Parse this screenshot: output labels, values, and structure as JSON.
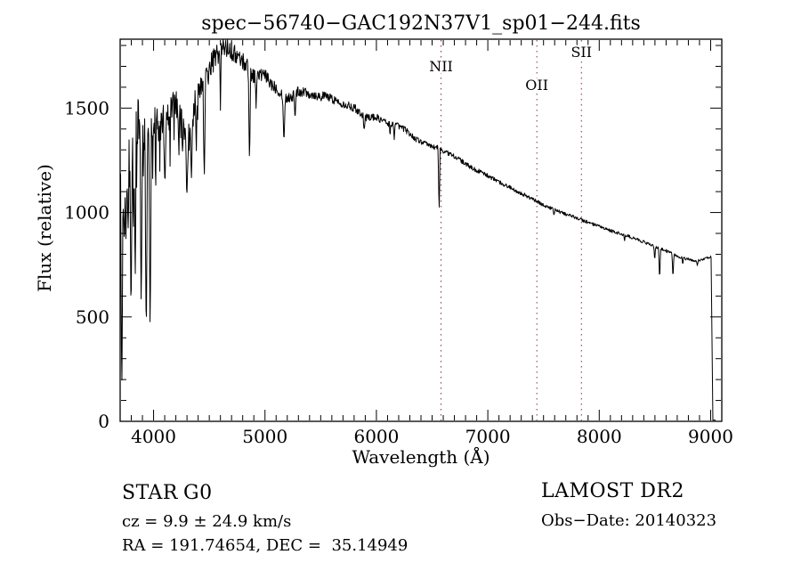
{
  "chart_data": {
    "type": "line",
    "title": "spec−56740−GAC192N37V1_sp01−244.fits",
    "xlabel": "Wavelength (Å)",
    "ylabel": "Flux (relative)",
    "xlim": [
      3700,
      9100
    ],
    "ylim": [
      0,
      1830
    ],
    "xticks": [
      4000,
      5000,
      6000,
      7000,
      8000,
      9000
    ],
    "yticks": [
      0,
      500,
      1000,
      1500
    ],
    "x_minor_step": 100,
    "y_minor_step": 100,
    "grid": false,
    "legend": "none",
    "line_color": "#000000",
    "frame_color": "#000000",
    "marked_line_color": "#8B2E2E",
    "marked_lines": [
      {
        "label": "NII",
        "wavelength": 6580,
        "label_baseline_y": 80
      },
      {
        "label": "OII",
        "wavelength": 7440,
        "label_baseline_y": 101
      },
      {
        "label": "SII",
        "wavelength": 7840,
        "label_baseline_y": 64
      }
    ],
    "spectrum": {
      "sample_step_angstrom": 4,
      "continuum_points": [
        [
          3700,
          1060
        ],
        [
          3720,
          1080
        ],
        [
          3750,
          1090
        ],
        [
          3780,
          1240
        ],
        [
          3820,
          1280
        ],
        [
          3860,
          1430
        ],
        [
          3900,
          1380
        ],
        [
          3950,
          1400
        ],
        [
          4000,
          1400
        ],
        [
          4040,
          1460
        ],
        [
          4080,
          1450
        ],
        [
          4120,
          1420
        ],
        [
          4160,
          1480
        ],
        [
          4200,
          1520
        ],
        [
          4240,
          1470
        ],
        [
          4280,
          1420
        ],
        [
          4320,
          1360
        ],
        [
          4360,
          1500
        ],
        [
          4400,
          1580
        ],
        [
          4440,
          1600
        ],
        [
          4480,
          1650
        ],
        [
          4520,
          1710
        ],
        [
          4560,
          1750
        ],
        [
          4600,
          1775
        ],
        [
          4640,
          1795
        ],
        [
          4680,
          1790
        ],
        [
          4720,
          1760
        ],
        [
          4760,
          1745
        ],
        [
          4800,
          1725
        ],
        [
          4840,
          1705
        ],
        [
          4880,
          1665
        ],
        [
          4920,
          1650
        ],
        [
          4960,
          1660
        ],
        [
          5000,
          1655
        ],
        [
          5050,
          1620
        ],
        [
          5100,
          1600
        ],
        [
          5150,
          1570
        ],
        [
          5200,
          1548
        ],
        [
          5250,
          1558
        ],
        [
          5300,
          1580
        ],
        [
          5350,
          1580
        ],
        [
          5400,
          1570
        ],
        [
          5450,
          1562
        ],
        [
          5500,
          1556
        ],
        [
          5550,
          1558
        ],
        [
          5600,
          1545
        ],
        [
          5650,
          1532
        ],
        [
          5700,
          1522
        ],
        [
          5750,
          1512
        ],
        [
          5800,
          1502
        ],
        [
          5850,
          1482
        ],
        [
          5900,
          1455
        ],
        [
          5950,
          1458
        ],
        [
          6000,
          1455
        ],
        [
          6050,
          1442
        ],
        [
          6100,
          1428
        ],
        [
          6150,
          1420
        ],
        [
          6200,
          1415
        ],
        [
          6250,
          1400
        ],
        [
          6300,
          1378
        ],
        [
          6350,
          1352
        ],
        [
          6400,
          1340
        ],
        [
          6450,
          1326
        ],
        [
          6500,
          1316
        ],
        [
          6550,
          1310
        ],
        [
          6600,
          1295
        ],
        [
          6650,
          1282
        ],
        [
          6700,
          1270
        ],
        [
          6750,
          1252
        ],
        [
          6800,
          1232
        ],
        [
          6850,
          1216
        ],
        [
          6900,
          1202
        ],
        [
          6950,
          1190
        ],
        [
          7000,
          1176
        ],
        [
          7100,
          1146
        ],
        [
          7200,
          1120
        ],
        [
          7300,
          1092
        ],
        [
          7400,
          1064
        ],
        [
          7500,
          1036
        ],
        [
          7600,
          1012
        ],
        [
          7700,
          992
        ],
        [
          7800,
          974
        ],
        [
          7900,
          952
        ],
        [
          8000,
          932
        ],
        [
          8100,
          913
        ],
        [
          8200,
          896
        ],
        [
          8300,
          879
        ],
        [
          8400,
          859
        ],
        [
          8500,
          836
        ],
        [
          8600,
          816
        ],
        [
          8700,
          792
        ],
        [
          8750,
          782
        ],
        [
          8800,
          776
        ],
        [
          8850,
          770
        ],
        [
          8900,
          769
        ],
        [
          8950,
          781
        ],
        [
          9000,
          788
        ],
        [
          9045,
          788
        ]
      ],
      "noise_amplitude_points": [
        [
          3700,
          150
        ],
        [
          3770,
          130
        ],
        [
          3900,
          105
        ],
        [
          4000,
          88
        ],
        [
          4300,
          80
        ],
        [
          4500,
          58
        ],
        [
          4700,
          47
        ],
        [
          5000,
          33
        ],
        [
          5300,
          26
        ],
        [
          5600,
          21
        ],
        [
          6000,
          17
        ],
        [
          6400,
          13
        ],
        [
          6800,
          11
        ],
        [
          7300,
          9
        ],
        [
          8000,
          8
        ],
        [
          8600,
          7
        ],
        [
          9045,
          6
        ]
      ],
      "absorption_features": [
        [
          3715,
          130,
          10
        ],
        [
          3737,
          820,
          8
        ],
        [
          3752,
          870,
          8
        ],
        [
          3771,
          900,
          8
        ],
        [
          3798,
          490,
          9
        ],
        [
          3820,
          920,
          8
        ],
        [
          3835,
          620,
          9
        ],
        [
          3889,
          520,
          10
        ],
        [
          3934,
          355,
          11
        ],
        [
          3969,
          430,
          11
        ],
        [
          4045,
          1320,
          6
        ],
        [
          4101,
          1180,
          12
        ],
        [
          4226,
          1300,
          8
        ],
        [
          4260,
          1290,
          8
        ],
        [
          4300,
          1115,
          14
        ],
        [
          4340,
          1150,
          10
        ],
        [
          4383,
          1290,
          8
        ],
        [
          4455,
          1130,
          10
        ],
        [
          4600,
          1480,
          6
        ],
        [
          4861,
          1230,
          10
        ],
        [
          4920,
          1490,
          6
        ],
        [
          5170,
          1340,
          12
        ],
        [
          5270,
          1445,
          8
        ],
        [
          5890,
          1390,
          10
        ],
        [
          6122,
          1360,
          6
        ],
        [
          6160,
          1350,
          6
        ],
        [
          6563,
          1000,
          9
        ],
        [
          7594,
          985,
          8
        ],
        [
          8227,
          862,
          6
        ],
        [
          8498,
          770,
          7
        ],
        [
          8542,
          675,
          8
        ],
        [
          8662,
          685,
          8
        ],
        [
          8750,
          748,
          6
        ],
        [
          8880,
          745,
          7
        ]
      ],
      "red_cutoff": {
        "start": 9004,
        "end": 9020,
        "end_flux": 6
      },
      "data_end": 9045
    }
  },
  "footer": {
    "object_class": "STAR",
    "subclass": "G0",
    "cz_line": "cz = 9.9 ± 24.9 km/s",
    "ra_dec_line": "RA = 191.74654, DEC =  35.14949",
    "survey": "LAMOST DR2",
    "obs_date_line": "Obs−Date: 20140323"
  }
}
